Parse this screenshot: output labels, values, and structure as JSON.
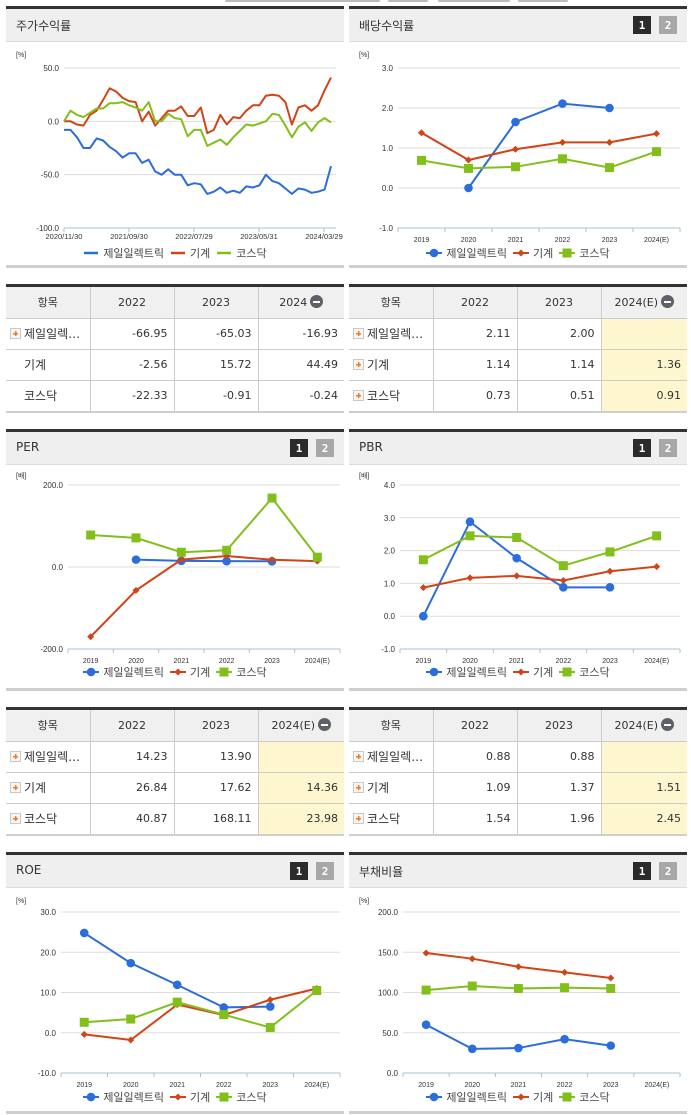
{
  "series_names": [
    "제일일렉트릭",
    "기계",
    "코스닥"
  ],
  "colors": {
    "company": "#2a6ddb",
    "industry": "#d24316",
    "kosdaq": "#82bf1a",
    "grid": "#dddddd",
    "axis": "#a9bfd8",
    "estimate_bg": "#fdf6cf"
  },
  "panels": {
    "stock_return": {
      "title": "주가수익률",
      "unit": "[%]",
      "y_ticks": [
        "50.0",
        "0.0",
        "-50.0",
        "-100.0"
      ],
      "x_ticks": [
        "2020/11/30",
        "2021/09/30",
        "2022/07/29",
        "2023/05/31",
        "2024/03/29"
      ]
    },
    "dividend_yield": {
      "title": "배당수익률",
      "unit": "[%]",
      "y_ticks": [
        "3.0",
        "2.0",
        "1.0",
        "0.0",
        "-1.0"
      ],
      "page_buttons": [
        "1",
        "2"
      ]
    },
    "per": {
      "title": "PER",
      "unit": "[배]",
      "y_ticks": [
        "200.0",
        "0.0",
        "-200.0"
      ],
      "page_buttons": [
        "1",
        "2"
      ]
    },
    "pbr": {
      "title": "PBR",
      "unit": "[배]",
      "y_ticks": [
        "4.0",
        "3.0",
        "2.0",
        "1.0",
        "0.0",
        "-1.0"
      ],
      "page_buttons": [
        "1",
        "2"
      ]
    },
    "roe": {
      "title": "ROE",
      "unit": "[%]",
      "y_ticks": [
        "30.0",
        "20.0",
        "10.0",
        "0.0",
        "-10.0"
      ],
      "page_buttons": [
        "1",
        "2"
      ]
    },
    "debt_ratio": {
      "title": "부채비율",
      "unit": "[%]",
      "y_ticks": [
        "200.0",
        "150.0",
        "100.0",
        "50.0",
        "0.0"
      ],
      "page_buttons": [
        "1",
        "2"
      ]
    }
  },
  "x_years": [
    "2019",
    "2020",
    "2021",
    "2022",
    "2023",
    "2024(E)"
  ],
  "tables": {
    "stock_return": {
      "headers": [
        "항목",
        "2022",
        "2023",
        "2024"
      ],
      "rows": [
        {
          "label": "제일일렉…",
          "expand": true,
          "values": [
            "-66.95",
            "-65.03",
            "-16.93"
          ]
        },
        {
          "label": "기계",
          "expand": false,
          "values": [
            "-2.56",
            "15.72",
            "44.49"
          ]
        },
        {
          "label": "코스닥",
          "expand": false,
          "values": [
            "-22.33",
            "-0.91",
            "-0.24"
          ]
        }
      ]
    },
    "dividend_yield": {
      "headers": [
        "항목",
        "2022",
        "2023",
        "2024(E)"
      ],
      "rows": [
        {
          "label": "제일일렉…",
          "expand": true,
          "values": [
            "2.11",
            "2.00",
            ""
          ]
        },
        {
          "label": "기계",
          "expand": true,
          "values": [
            "1.14",
            "1.14",
            "1.36"
          ]
        },
        {
          "label": "코스닥",
          "expand": true,
          "values": [
            "0.73",
            "0.51",
            "0.91"
          ]
        }
      ]
    },
    "per": {
      "headers": [
        "항목",
        "2022",
        "2023",
        "2024(E)"
      ],
      "rows": [
        {
          "label": "제일일렉…",
          "expand": true,
          "values": [
            "14.23",
            "13.90",
            ""
          ]
        },
        {
          "label": "기계",
          "expand": true,
          "values": [
            "26.84",
            "17.62",
            "14.36"
          ]
        },
        {
          "label": "코스닥",
          "expand": true,
          "values": [
            "40.87",
            "168.11",
            "23.98"
          ]
        }
      ]
    },
    "pbr": {
      "headers": [
        "항목",
        "2022",
        "2023",
        "2024(E)"
      ],
      "rows": [
        {
          "label": "제일일렉…",
          "expand": true,
          "values": [
            "0.88",
            "0.88",
            ""
          ]
        },
        {
          "label": "기계",
          "expand": true,
          "values": [
            "1.09",
            "1.37",
            "1.51"
          ]
        },
        {
          "label": "코스닥",
          "expand": true,
          "values": [
            "1.54",
            "1.96",
            "2.45"
          ]
        }
      ]
    }
  },
  "chart_data": [
    {
      "type": "line",
      "title": "주가수익률",
      "ylabel": "[%]",
      "ylim": [
        -100,
        50
      ],
      "x_tick_labels": [
        "2020/11/30",
        "2021/09/30",
        "2022/07/29",
        "2023/05/31",
        "2024/03/29"
      ],
      "legend_position": "bottom",
      "grid": true,
      "series": [
        {
          "name": "제일일렉트릭",
          "values": [
            -8,
            -8,
            -15,
            -25,
            -25,
            -16,
            -18,
            -24,
            -28,
            -34,
            -30,
            -30,
            -39,
            -36,
            -47,
            -50,
            -45,
            -50,
            -50,
            -60,
            -58,
            -59,
            -68,
            -66,
            -62,
            -67,
            -65,
            -67,
            -61,
            -62,
            -60,
            -50,
            -56,
            -58,
            -63,
            -68,
            -63,
            -64,
            -67,
            -66,
            -64,
            -42
          ]
        },
        {
          "name": "기계",
          "values": [
            0,
            0,
            -3,
            -4,
            6,
            10,
            20,
            31,
            28,
            22,
            19,
            18,
            0,
            9,
            -4,
            3,
            10,
            10,
            14,
            5,
            5,
            13,
            -11,
            -8,
            6,
            -3,
            4,
            3,
            10,
            15,
            15,
            24,
            25,
            24,
            18,
            -3,
            13,
            15,
            10,
            15,
            29,
            41
          ]
        },
        {
          "name": "코스닥",
          "values": [
            0,
            10,
            6,
            4,
            8,
            12,
            12,
            17,
            17,
            18,
            15,
            13,
            10,
            18,
            0,
            0,
            7,
            3,
            2,
            -14,
            -8,
            -8,
            -23,
            -20,
            -17,
            -22,
            -15,
            -9,
            -3,
            -4,
            -2,
            0,
            7,
            6,
            -4,
            -15,
            -5,
            -1,
            -9,
            -1,
            3,
            -1
          ]
        }
      ]
    },
    {
      "type": "line",
      "title": "배당수익률",
      "ylabel": "[%]",
      "ylim": [
        -1,
        3
      ],
      "categories": [
        "2019",
        "2020",
        "2021",
        "2022",
        "2023",
        "2024(E)"
      ],
      "legend_position": "bottom",
      "grid": true,
      "series": [
        {
          "name": "제일일렉트릭",
          "values": [
            null,
            0.0,
            1.65,
            2.11,
            2.0,
            null
          ]
        },
        {
          "name": "기계",
          "values": [
            1.38,
            0.7,
            0.97,
            1.14,
            1.14,
            1.36
          ]
        },
        {
          "name": "코스닥",
          "values": [
            0.69,
            0.49,
            0.53,
            0.73,
            0.51,
            0.91
          ]
        }
      ]
    },
    {
      "type": "line",
      "title": "PER",
      "ylabel": "[배]",
      "ylim": [
        -200,
        200
      ],
      "categories": [
        "2019",
        "2020",
        "2021",
        "2022",
        "2023",
        "2024(E)"
      ],
      "legend_position": "bottom",
      "grid": true,
      "series": [
        {
          "name": "제일일렉트릭",
          "values": [
            null,
            18,
            15,
            14.23,
            13.9,
            null
          ]
        },
        {
          "name": "기계",
          "values": [
            -170,
            -57,
            18,
            26.84,
            17.62,
            14.36
          ]
        },
        {
          "name": "코스닥",
          "values": [
            78,
            71,
            36,
            40.87,
            168.11,
            23.98
          ]
        }
      ]
    },
    {
      "type": "line",
      "title": "PBR",
      "ylabel": "[배]",
      "ylim": [
        -1,
        4
      ],
      "categories": [
        "2019",
        "2020",
        "2021",
        "2022",
        "2023",
        "2024(E)"
      ],
      "legend_position": "bottom",
      "grid": true,
      "series": [
        {
          "name": "제일일렉트릭",
          "values": [
            0.0,
            2.88,
            1.77,
            0.88,
            0.88,
            null
          ]
        },
        {
          "name": "기계",
          "values": [
            0.87,
            1.17,
            1.23,
            1.09,
            1.37,
            1.51
          ]
        },
        {
          "name": "코스닥",
          "values": [
            1.72,
            2.45,
            2.4,
            1.54,
            1.96,
            2.45
          ]
        }
      ]
    },
    {
      "type": "line",
      "title": "ROE",
      "ylabel": "[%]",
      "ylim": [
        -10,
        30
      ],
      "categories": [
        "2019",
        "2020",
        "2021",
        "2022",
        "2023",
        "2024(E)"
      ],
      "legend_position": "bottom",
      "grid": true,
      "series": [
        {
          "name": "제일일렉트릭",
          "values": [
            24.8,
            17.3,
            11.9,
            6.3,
            6.5,
            null
          ]
        },
        {
          "name": "기계",
          "values": [
            -0.4,
            -1.8,
            7.0,
            4.4,
            8.2,
            11.0
          ]
        },
        {
          "name": "코스닥",
          "values": [
            2.6,
            3.4,
            7.6,
            4.5,
            1.3,
            10.5
          ]
        }
      ]
    },
    {
      "type": "line",
      "title": "부채비율",
      "ylabel": "[%]",
      "ylim": [
        0,
        200
      ],
      "categories": [
        "2019",
        "2020",
        "2021",
        "2022",
        "2023",
        "2024(E)"
      ],
      "legend_position": "bottom",
      "grid": true,
      "series": [
        {
          "name": "제일일렉트릭",
          "values": [
            60,
            30,
            31,
            42,
            34,
            null
          ]
        },
        {
          "name": "기계",
          "values": [
            149,
            142,
            132,
            125,
            118,
            null
          ]
        },
        {
          "name": "코스닥",
          "values": [
            103,
            108,
            105,
            106,
            105,
            null
          ]
        }
      ]
    }
  ]
}
